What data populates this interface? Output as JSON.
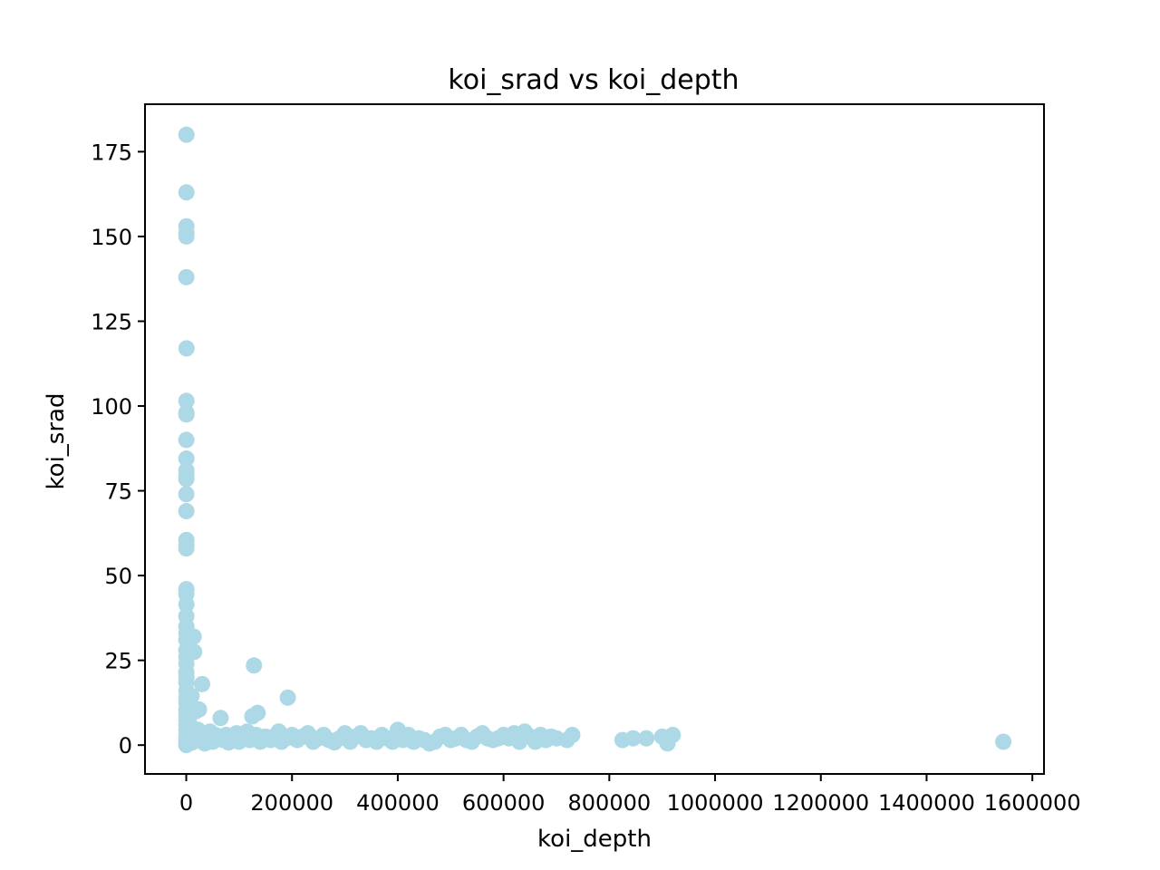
{
  "chart_data": {
    "type": "scatter",
    "title": "koi_srad vs koi_depth",
    "xlabel": "koi_depth",
    "ylabel": "koi_srad",
    "xlim": [
      -78000,
      1622000
    ],
    "ylim": [
      -8.5,
      189
    ],
    "xticks": [
      0,
      200000,
      400000,
      600000,
      800000,
      1000000,
      1200000,
      1400000,
      1600000
    ],
    "xtick_labels": [
      "0",
      "200000",
      "400000",
      "600000",
      "800000",
      "1000000",
      "1200000",
      "1400000",
      "1600000"
    ],
    "yticks": [
      0,
      25,
      50,
      75,
      100,
      125,
      150,
      175
    ],
    "ytick_labels": [
      "0",
      "25",
      "50",
      "75",
      "100",
      "125",
      "150",
      "175"
    ],
    "grid": false,
    "marker_color": "#add8e6",
    "series": [
      {
        "points": [
          [
            300,
            180
          ],
          [
            400,
            163
          ],
          [
            300,
            153
          ],
          [
            300,
            151
          ],
          [
            300,
            150
          ],
          [
            200,
            138
          ],
          [
            500,
            117
          ],
          [
            300,
            101.5
          ],
          [
            300,
            98
          ],
          [
            300,
            97.5
          ],
          [
            200,
            90
          ],
          [
            300,
            84.5
          ],
          [
            300,
            81
          ],
          [
            200,
            79.5
          ],
          [
            200,
            78.5
          ],
          [
            200,
            74
          ],
          [
            200,
            69
          ],
          [
            300,
            60.5
          ],
          [
            300,
            59
          ],
          [
            200,
            58
          ],
          [
            200,
            46
          ],
          [
            200,
            44.5
          ],
          [
            300,
            41.5
          ],
          [
            200,
            38
          ],
          [
            200,
            35
          ],
          [
            400,
            33
          ],
          [
            200,
            31
          ],
          [
            200,
            28
          ],
          [
            300,
            26
          ],
          [
            300,
            24
          ],
          [
            200,
            21.5
          ],
          [
            300,
            20
          ],
          [
            200,
            18.5
          ],
          [
            300,
            16
          ],
          [
            200,
            14
          ],
          [
            300,
            12.5
          ],
          [
            200,
            10.5
          ],
          [
            300,
            9
          ],
          [
            200,
            7.5
          ],
          [
            300,
            6
          ],
          [
            200,
            4.5
          ],
          [
            300,
            3
          ],
          [
            200,
            2
          ],
          [
            300,
            1
          ],
          [
            200,
            0
          ],
          [
            500,
            0.5
          ],
          [
            1000,
            2.5
          ],
          [
            1500,
            5
          ],
          [
            2000,
            3.5
          ],
          [
            3000,
            1.5
          ],
          [
            4000,
            8
          ],
          [
            5000,
            6.5
          ],
          [
            6000,
            4
          ],
          [
            7000,
            12
          ],
          [
            8000,
            2.5
          ],
          [
            9000,
            1
          ],
          [
            10000,
            14.5
          ],
          [
            11000,
            0.8
          ],
          [
            12000,
            5
          ],
          [
            14000,
            32
          ],
          [
            15000,
            27.5
          ],
          [
            16000,
            3
          ],
          [
            18000,
            10
          ],
          [
            20000,
            1.5
          ],
          [
            22000,
            4.5
          ],
          [
            24000,
            10.5
          ],
          [
            26000,
            2
          ],
          [
            30000,
            18
          ],
          [
            32000,
            3
          ],
          [
            35000,
            0.5
          ],
          [
            40000,
            2.5
          ],
          [
            45000,
            4
          ],
          [
            50000,
            1
          ],
          [
            55000,
            3
          ],
          [
            60000,
            2
          ],
          [
            65000,
            8
          ],
          [
            70000,
            1.5
          ],
          [
            75000,
            3
          ],
          [
            80000,
            0.8
          ],
          [
            90000,
            2.5
          ],
          [
            95000,
            3.5
          ],
          [
            100000,
            1
          ],
          [
            110000,
            2
          ],
          [
            115000,
            4
          ],
          [
            120000,
            1.5
          ],
          [
            125000,
            8.5
          ],
          [
            128000,
            23.5
          ],
          [
            132000,
            3
          ],
          [
            135000,
            9.5
          ],
          [
            140000,
            1
          ],
          [
            150000,
            2.5
          ],
          [
            160000,
            1.5
          ],
          [
            170000,
            3
          ],
          [
            175000,
            4
          ],
          [
            180000,
            1
          ],
          [
            190000,
            2
          ],
          [
            192000,
            14
          ],
          [
            200000,
            3
          ],
          [
            210000,
            1.5
          ],
          [
            220000,
            2.5
          ],
          [
            230000,
            3.5
          ],
          [
            240000,
            1
          ],
          [
            250000,
            2
          ],
          [
            260000,
            3
          ],
          [
            270000,
            1.5
          ],
          [
            280000,
            0.8
          ],
          [
            290000,
            2
          ],
          [
            300000,
            3.5
          ],
          [
            310000,
            1
          ],
          [
            320000,
            2.5
          ],
          [
            330000,
            3.5
          ],
          [
            340000,
            1.5
          ],
          [
            350000,
            2
          ],
          [
            360000,
            1
          ],
          [
            370000,
            3
          ],
          [
            380000,
            2
          ],
          [
            390000,
            1
          ],
          [
            400000,
            4.5
          ],
          [
            405000,
            2.5
          ],
          [
            410000,
            1.5
          ],
          [
            420000,
            3
          ],
          [
            430000,
            1
          ],
          [
            440000,
            2
          ],
          [
            450000,
            1.5
          ],
          [
            460000,
            0.5
          ],
          [
            470000,
            1
          ],
          [
            480000,
            2.5
          ],
          [
            490000,
            3
          ],
          [
            500000,
            1.5
          ],
          [
            510000,
            2
          ],
          [
            520000,
            3
          ],
          [
            530000,
            1.5
          ],
          [
            540000,
            1
          ],
          [
            550000,
            2.5
          ],
          [
            560000,
            3.5
          ],
          [
            570000,
            2
          ],
          [
            580000,
            1.5
          ],
          [
            590000,
            2
          ],
          [
            600000,
            3
          ],
          [
            610000,
            2
          ],
          [
            620000,
            3.5
          ],
          [
            630000,
            1
          ],
          [
            640000,
            4
          ],
          [
            650000,
            2.5
          ],
          [
            660000,
            1
          ],
          [
            670000,
            3
          ],
          [
            680000,
            1.5
          ],
          [
            690000,
            2.5
          ],
          [
            700000,
            2
          ],
          [
            720000,
            1.5
          ],
          [
            730000,
            3
          ],
          [
            825000,
            1.5
          ],
          [
            845000,
            2
          ],
          [
            870000,
            2
          ],
          [
            900000,
            2.5
          ],
          [
            910000,
            0.5
          ],
          [
            920000,
            3
          ],
          [
            1545000,
            1
          ]
        ]
      }
    ]
  }
}
